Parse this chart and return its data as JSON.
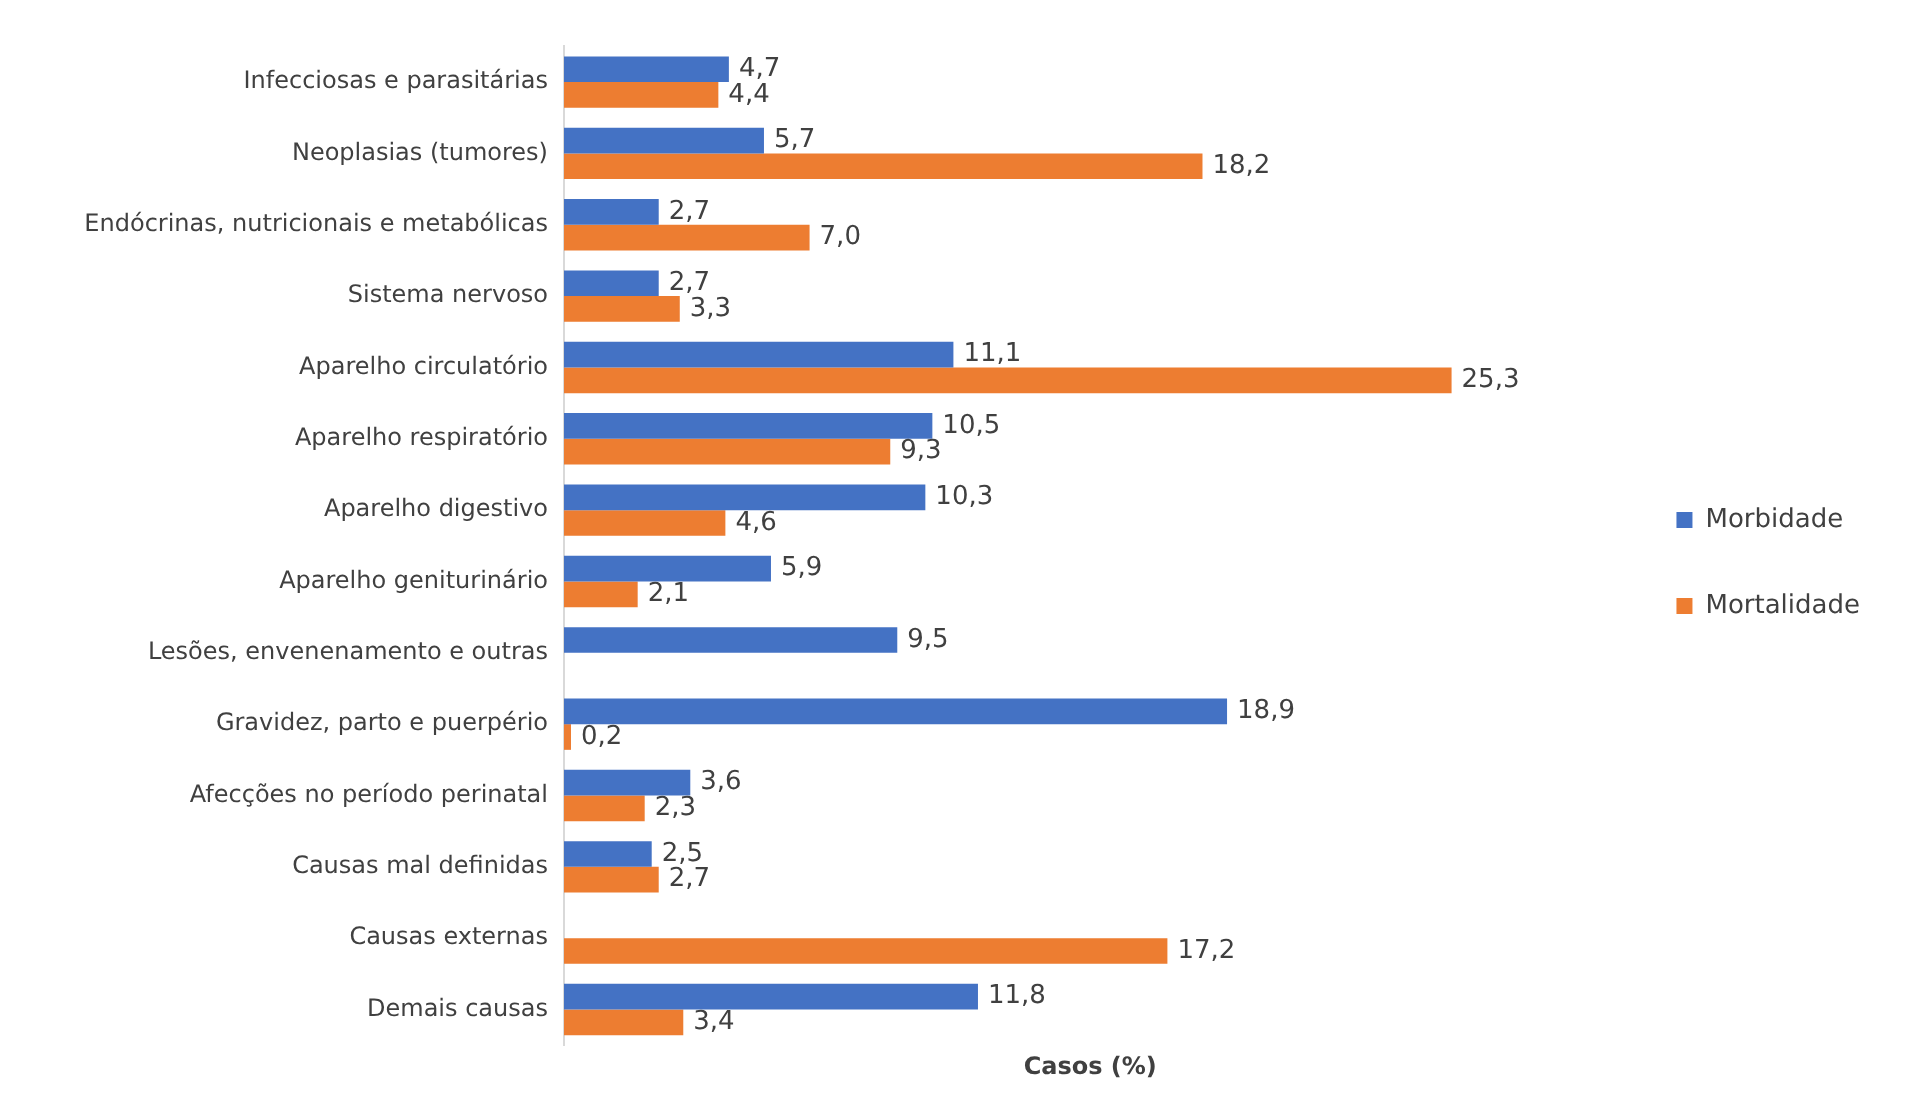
{
  "chart_data": {
    "type": "bar",
    "orientation": "horizontal",
    "xlabel": "Casos (%)",
    "tick_labels": "y",
    "grid": false,
    "legend": "right",
    "categories": [
      "Infecciosas e parasitárias",
      "Neoplasias (tumores)",
      "Endócrinas, nutricionais e metabólicas",
      "Sistema nervoso",
      "Aparelho circulatório",
      "Aparelho respiratório",
      "Aparelho digestivo",
      "Aparelho geniturinário",
      "Lesões, envenenamento e outras",
      "Gravidez, parto e puerpério",
      "Afecções no período perinatal",
      "Causas mal definidas",
      "Causas externas",
      "Demais causas"
    ],
    "series": [
      {
        "name": "Morbidade",
        "color": "#4472c4",
        "values": [
          4.7,
          5.7,
          2.7,
          2.7,
          11.1,
          10.5,
          10.3,
          5.9,
          9.5,
          18.9,
          3.6,
          2.5,
          null,
          11.8
        ],
        "value_labels": [
          "4,7",
          "5,7",
          "2,7",
          "2,7",
          "11,1",
          "10,5",
          "10,3",
          "5,9",
          "9,5",
          "18,9",
          "3,6",
          "2,5",
          null,
          "11,8"
        ]
      },
      {
        "name": "Mortalidade",
        "color": "#ed7d31",
        "values": [
          4.4,
          18.2,
          7.0,
          3.3,
          25.3,
          9.3,
          4.6,
          2.1,
          null,
          0.2,
          2.3,
          2.7,
          17.2,
          3.4
        ],
        "value_labels": [
          "4,4",
          "18,2",
          "7,0",
          "3,3",
          "25,3",
          "9,3",
          "4,6",
          "2,1",
          null,
          "0,2",
          "2,3",
          "2,7",
          "17,2",
          "3,4"
        ]
      }
    ]
  }
}
